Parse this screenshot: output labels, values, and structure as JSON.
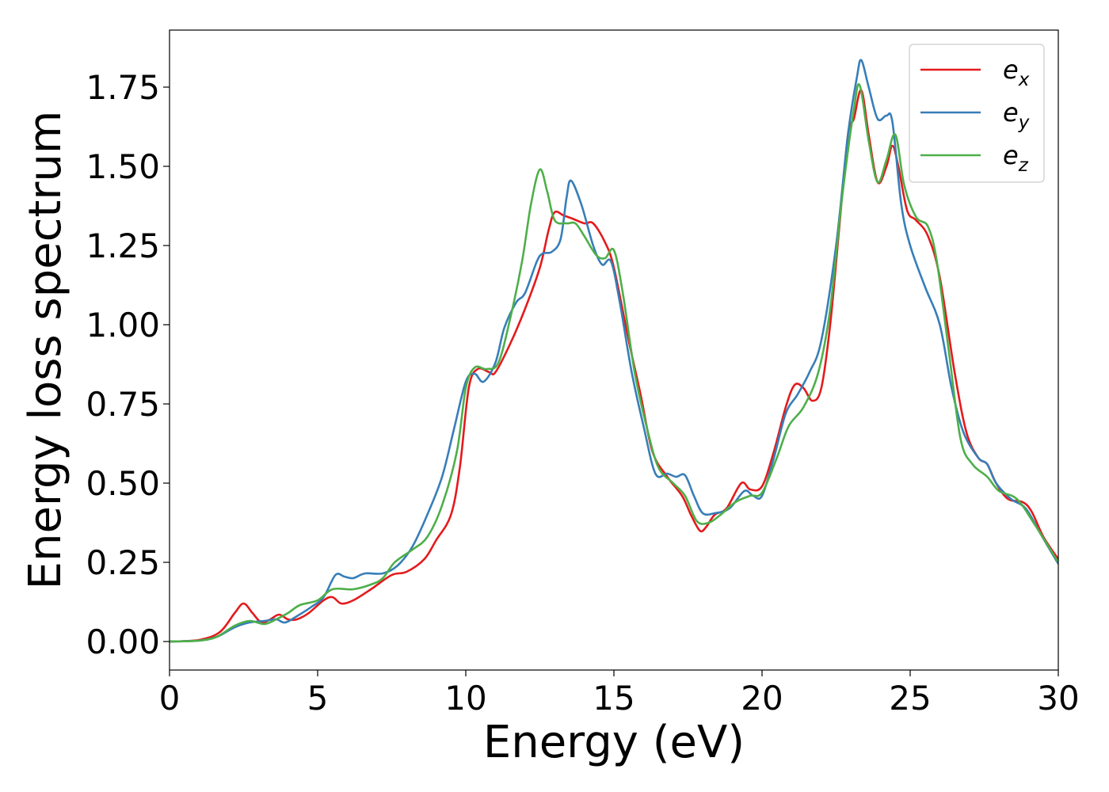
{
  "chart_data": {
    "type": "line",
    "title": "",
    "xlabel": "Energy (eV)",
    "ylabel": "Energy loss spectrum",
    "xlim": [
      0,
      30
    ],
    "ylim": [
      -0.09,
      1.93
    ],
    "xticks": [
      0,
      5,
      10,
      15,
      20,
      25,
      30
    ],
    "xtick_labels": [
      "0",
      "5",
      "10",
      "15",
      "20",
      "25",
      "30"
    ],
    "yticks": [
      0.0,
      0.25,
      0.5,
      0.75,
      1.0,
      1.25,
      1.5,
      1.75
    ],
    "ytick_labels": [
      "0.00",
      "0.25",
      "0.50",
      "0.75",
      "1.00",
      "1.25",
      "1.50",
      "1.75"
    ],
    "grid": false,
    "legend_position": "top-right",
    "series": [
      {
        "name": "e_x",
        "label_base": "e",
        "label_sub": "x",
        "color": "#e41a1c",
        "points": [
          [
            0,
            0
          ],
          [
            1,
            0.005
          ],
          [
            1.7,
            0.03
          ],
          [
            2.2,
            0.09
          ],
          [
            2.5,
            0.12
          ],
          [
            2.8,
            0.09
          ],
          [
            3.1,
            0.06
          ],
          [
            3.4,
            0.07
          ],
          [
            3.7,
            0.085
          ],
          [
            4.0,
            0.07
          ],
          [
            4.3,
            0.07
          ],
          [
            4.7,
            0.09
          ],
          [
            5.2,
            0.13
          ],
          [
            5.5,
            0.14
          ],
          [
            5.8,
            0.12
          ],
          [
            6.2,
            0.13
          ],
          [
            6.8,
            0.165
          ],
          [
            7.5,
            0.21
          ],
          [
            8.0,
            0.22
          ],
          [
            8.6,
            0.26
          ],
          [
            9.0,
            0.32
          ],
          [
            9.5,
            0.4
          ],
          [
            9.8,
            0.55
          ],
          [
            10.1,
            0.8
          ],
          [
            10.4,
            0.86
          ],
          [
            10.8,
            0.85
          ],
          [
            11.0,
            0.85
          ],
          [
            11.5,
            0.94
          ],
          [
            12.0,
            1.05
          ],
          [
            12.5,
            1.18
          ],
          [
            12.8,
            1.3
          ],
          [
            13.0,
            1.355
          ],
          [
            13.3,
            1.345
          ],
          [
            13.6,
            1.335
          ],
          [
            14.0,
            1.32
          ],
          [
            14.3,
            1.32
          ],
          [
            14.7,
            1.26
          ],
          [
            15.0,
            1.18
          ],
          [
            15.5,
            0.95
          ],
          [
            15.9,
            0.78
          ],
          [
            16.3,
            0.6
          ],
          [
            16.8,
            0.52
          ],
          [
            17.3,
            0.46
          ],
          [
            17.6,
            0.4
          ],
          [
            17.9,
            0.35
          ],
          [
            18.1,
            0.36
          ],
          [
            18.4,
            0.4
          ],
          [
            18.8,
            0.42
          ],
          [
            19.3,
            0.5
          ],
          [
            19.6,
            0.48
          ],
          [
            20.0,
            0.49
          ],
          [
            20.4,
            0.6
          ],
          [
            20.8,
            0.74
          ],
          [
            21.1,
            0.81
          ],
          [
            21.4,
            0.8
          ],
          [
            21.7,
            0.76
          ],
          [
            22.0,
            0.8
          ],
          [
            22.3,
            1.0
          ],
          [
            22.6,
            1.3
          ],
          [
            22.9,
            1.6
          ],
          [
            23.1,
            1.65
          ],
          [
            23.35,
            1.74
          ],
          [
            23.6,
            1.6
          ],
          [
            23.9,
            1.45
          ],
          [
            24.2,
            1.5
          ],
          [
            24.4,
            1.565
          ],
          [
            24.6,
            1.5
          ],
          [
            24.9,
            1.36
          ],
          [
            25.2,
            1.33
          ],
          [
            25.6,
            1.28
          ],
          [
            26.0,
            1.15
          ],
          [
            26.5,
            0.85
          ],
          [
            26.9,
            0.66
          ],
          [
            27.3,
            0.58
          ],
          [
            27.6,
            0.56
          ],
          [
            27.9,
            0.5
          ],
          [
            28.3,
            0.45
          ],
          [
            28.8,
            0.44
          ],
          [
            29.1,
            0.41
          ],
          [
            29.5,
            0.33
          ],
          [
            30,
            0.26
          ]
        ]
      },
      {
        "name": "e_y",
        "label_base": "e",
        "label_sub": "y",
        "color": "#377eb8",
        "points": [
          [
            0,
            0
          ],
          [
            1,
            0.003
          ],
          [
            1.6,
            0.015
          ],
          [
            2.2,
            0.045
          ],
          [
            2.7,
            0.06
          ],
          [
            3.2,
            0.065
          ],
          [
            3.6,
            0.07
          ],
          [
            3.9,
            0.06
          ],
          [
            4.3,
            0.08
          ],
          [
            4.8,
            0.11
          ],
          [
            5.2,
            0.14
          ],
          [
            5.6,
            0.21
          ],
          [
            5.9,
            0.205
          ],
          [
            6.2,
            0.2
          ],
          [
            6.6,
            0.215
          ],
          [
            7.2,
            0.215
          ],
          [
            7.7,
            0.24
          ],
          [
            8.2,
            0.3
          ],
          [
            8.7,
            0.4
          ],
          [
            9.2,
            0.52
          ],
          [
            9.6,
            0.67
          ],
          [
            10.0,
            0.82
          ],
          [
            10.3,
            0.845
          ],
          [
            10.6,
            0.82
          ],
          [
            11.0,
            0.88
          ],
          [
            11.3,
            0.99
          ],
          [
            11.7,
            1.07
          ],
          [
            12.0,
            1.1
          ],
          [
            12.4,
            1.2
          ],
          [
            12.6,
            1.225
          ],
          [
            12.9,
            1.23
          ],
          [
            13.2,
            1.27
          ],
          [
            13.4,
            1.4
          ],
          [
            13.55,
            1.455
          ],
          [
            13.9,
            1.38
          ],
          [
            14.3,
            1.25
          ],
          [
            14.6,
            1.19
          ],
          [
            14.9,
            1.2
          ],
          [
            15.2,
            1.07
          ],
          [
            15.6,
            0.85
          ],
          [
            16.0,
            0.68
          ],
          [
            16.4,
            0.53
          ],
          [
            16.8,
            0.53
          ],
          [
            17.1,
            0.52
          ],
          [
            17.4,
            0.525
          ],
          [
            17.7,
            0.46
          ],
          [
            18.0,
            0.405
          ],
          [
            18.4,
            0.405
          ],
          [
            18.9,
            0.42
          ],
          [
            19.4,
            0.475
          ],
          [
            19.7,
            0.46
          ],
          [
            20.0,
            0.46
          ],
          [
            20.4,
            0.58
          ],
          [
            20.8,
            0.72
          ],
          [
            21.2,
            0.78
          ],
          [
            21.6,
            0.85
          ],
          [
            22.0,
            0.95
          ],
          [
            22.5,
            1.25
          ],
          [
            22.9,
            1.6
          ],
          [
            23.2,
            1.78
          ],
          [
            23.35,
            1.835
          ],
          [
            23.6,
            1.75
          ],
          [
            23.9,
            1.65
          ],
          [
            24.2,
            1.66
          ],
          [
            24.4,
            1.64
          ],
          [
            24.7,
            1.38
          ],
          [
            25.0,
            1.25
          ],
          [
            25.5,
            1.12
          ],
          [
            26.0,
            1.0
          ],
          [
            26.4,
            0.8
          ],
          [
            26.8,
            0.66
          ],
          [
            27.3,
            0.58
          ],
          [
            27.6,
            0.56
          ],
          [
            27.9,
            0.5
          ],
          [
            28.4,
            0.45
          ],
          [
            28.9,
            0.42
          ],
          [
            29.4,
            0.34
          ],
          [
            30,
            0.245
          ]
        ]
      },
      {
        "name": "e_z",
        "label_base": "e",
        "label_sub": "z",
        "color": "#4daf4a",
        "points": [
          [
            0,
            0
          ],
          [
            1,
            0.003
          ],
          [
            1.6,
            0.015
          ],
          [
            2.2,
            0.05
          ],
          [
            2.7,
            0.065
          ],
          [
            3.2,
            0.055
          ],
          [
            3.6,
            0.07
          ],
          [
            4.0,
            0.09
          ],
          [
            4.4,
            0.115
          ],
          [
            5.0,
            0.13
          ],
          [
            5.5,
            0.165
          ],
          [
            6.2,
            0.165
          ],
          [
            6.8,
            0.18
          ],
          [
            7.2,
            0.2
          ],
          [
            7.6,
            0.25
          ],
          [
            8.2,
            0.29
          ],
          [
            8.7,
            0.33
          ],
          [
            9.2,
            0.43
          ],
          [
            9.7,
            0.6
          ],
          [
            10.0,
            0.8
          ],
          [
            10.3,
            0.865
          ],
          [
            10.7,
            0.86
          ],
          [
            11.1,
            0.88
          ],
          [
            11.5,
            1.02
          ],
          [
            11.9,
            1.2
          ],
          [
            12.2,
            1.38
          ],
          [
            12.5,
            1.49
          ],
          [
            12.75,
            1.42
          ],
          [
            13.0,
            1.33
          ],
          [
            13.4,
            1.32
          ],
          [
            13.7,
            1.32
          ],
          [
            14.0,
            1.28
          ],
          [
            14.4,
            1.22
          ],
          [
            14.7,
            1.21
          ],
          [
            15.0,
            1.235
          ],
          [
            15.3,
            1.1
          ],
          [
            15.7,
            0.85
          ],
          [
            16.1,
            0.68
          ],
          [
            16.5,
            0.55
          ],
          [
            17.0,
            0.5
          ],
          [
            17.4,
            0.46
          ],
          [
            17.8,
            0.38
          ],
          [
            18.2,
            0.375
          ],
          [
            18.6,
            0.4
          ],
          [
            19.1,
            0.44
          ],
          [
            19.6,
            0.46
          ],
          [
            20.0,
            0.47
          ],
          [
            20.5,
            0.58
          ],
          [
            20.9,
            0.68
          ],
          [
            21.4,
            0.74
          ],
          [
            21.9,
            0.85
          ],
          [
            22.3,
            1.05
          ],
          [
            22.7,
            1.4
          ],
          [
            23.1,
            1.68
          ],
          [
            23.3,
            1.755
          ],
          [
            23.6,
            1.58
          ],
          [
            23.9,
            1.45
          ],
          [
            24.2,
            1.52
          ],
          [
            24.5,
            1.6
          ],
          [
            24.8,
            1.44
          ],
          [
            25.2,
            1.34
          ],
          [
            25.6,
            1.31
          ],
          [
            25.9,
            1.2
          ],
          [
            26.3,
            0.92
          ],
          [
            26.7,
            0.64
          ],
          [
            27.1,
            0.56
          ],
          [
            27.6,
            0.52
          ],
          [
            28.0,
            0.475
          ],
          [
            28.6,
            0.45
          ],
          [
            29.2,
            0.37
          ],
          [
            30,
            0.25
          ]
        ]
      }
    ]
  }
}
